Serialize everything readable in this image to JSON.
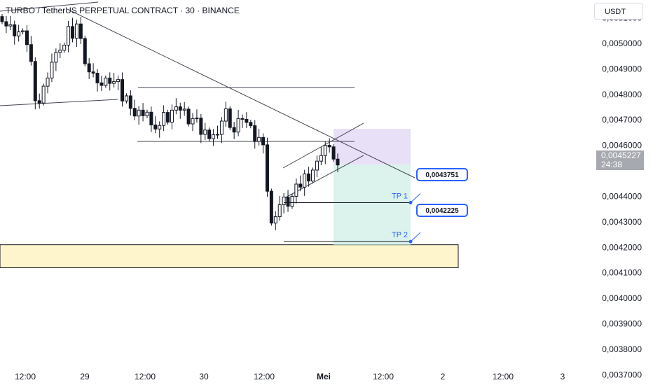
{
  "header": {
    "title": "TURBO / TetherUS PERPETUAL CONTRACT · 30 · BINANCE",
    "currency_button": "USDT"
  },
  "price_scale": {
    "partial_top_label": "0,0051000",
    "labels": [
      "0,0050000",
      "0,0049000",
      "0,0048000",
      "0,0047000",
      "0,0046000",
      "0,0044000",
      "0,0043000",
      "0,0042000",
      "0,0041000",
      "0,0040000",
      "0,0039000",
      "0,0038000",
      "0,0037000"
    ]
  },
  "current_price": {
    "value": "0,0045227",
    "countdown": "24:38",
    "color": "#a7a9b0"
  },
  "time_axis": {
    "labels": [
      "12:00",
      "29",
      "12:00",
      "30",
      "12:00",
      "Mei",
      "12:00",
      "2",
      "12:00",
      "3"
    ],
    "bold": [
      "Mei"
    ]
  },
  "targets": [
    {
      "name": "TP 1",
      "price_label": "0,0043751",
      "value": 0.0043751
    },
    {
      "name": "TP 2",
      "price_label": "0,0042225",
      "value": 0.0042225
    }
  ],
  "zones": {
    "support_zone": {
      "low": 0.00412,
      "high": 0.00421,
      "color": "#fff5cc"
    },
    "stop_zone": {
      "low": 0.004525,
      "high": 0.004665,
      "color": "#e8e0f7"
    },
    "target_zone": {
      "low": 0.00421,
      "high": 0.004525,
      "color": "#dbf3ec"
    }
  },
  "colors": {
    "candle": "#131722",
    "accent": "#2962ff",
    "lines": "#434651"
  },
  "chart_data": {
    "type": "candlestick",
    "title": "TURBO / TetherUS PERPETUAL CONTRACT · 30 · BINANCE",
    "xlabel": "",
    "ylabel": "",
    "ylim": [
      0.00366,
      0.00517
    ],
    "y_axis_position": "right",
    "x_ticks": [
      "12:00",
      "29",
      "12:00",
      "30",
      "12:00",
      "Mei",
      "12:00",
      "2",
      "12:00",
      "3"
    ],
    "ohlc_close_path": [
      0.005085,
      0.005068,
      0.005073,
      0.005029,
      0.005045,
      0.005049,
      0.004995,
      0.004929,
      0.004775,
      0.004766,
      0.004832,
      0.004864,
      0.004926,
      0.004964,
      0.004973,
      0.004993,
      0.005066,
      0.00502,
      0.005076,
      0.005019,
      0.00492,
      0.004888,
      0.004883,
      0.004845,
      0.004835,
      0.004864,
      0.004843,
      0.00485,
      0.004858,
      0.004774,
      0.004794,
      0.004745,
      0.004715,
      0.004738,
      0.004716,
      0.00473,
      0.00468,
      0.004664,
      0.004678,
      0.004729,
      0.004691,
      0.004738,
      0.004751,
      0.004738,
      0.004742,
      0.004684,
      0.004705,
      0.004707,
      0.004643,
      0.00466,
      0.004626,
      0.004642,
      0.004643,
      0.004695,
      0.004743,
      0.00467,
      0.004652,
      0.004705,
      0.004702,
      0.00469,
      0.004677,
      0.004615,
      0.004631,
      0.004602,
      0.00442,
      0.004295,
      0.00432,
      0.004367,
      0.004397,
      0.004361,
      0.0044,
      0.004448,
      0.004436,
      0.004488,
      0.00446,
      0.004503,
      0.004538,
      0.00456,
      0.0046,
      0.004594,
      0.004546,
      0.004523
    ],
    "overlays": {
      "descending_trendline": "upper left to current price",
      "horizontal_resistance": 0.00481,
      "horizontal_support": 0.00458,
      "rising_channel": "from 0.00434 to 0.00456",
      "support_zone": [
        0.00412,
        0.00421
      ]
    },
    "levels": [
      {
        "name": "TP 1",
        "value": 0.0043751
      },
      {
        "name": "TP 2",
        "value": 0.0042225
      }
    ],
    "current_price": 0.0045227
  }
}
